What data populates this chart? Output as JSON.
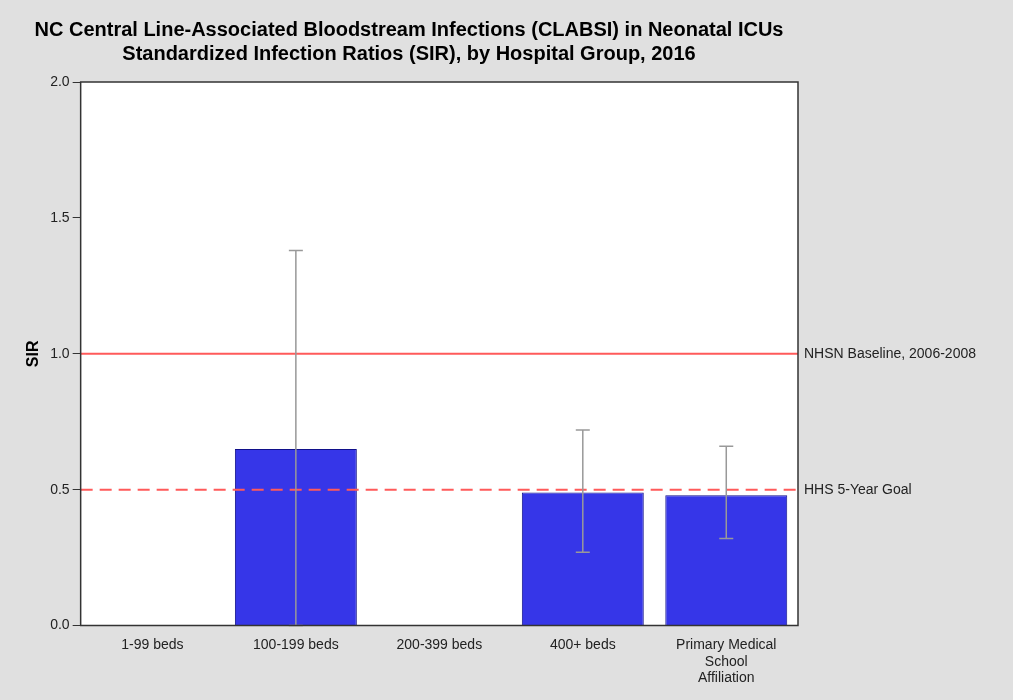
{
  "chart_data": {
    "type": "bar",
    "title": "NC Central Line-Associated Bloodstream Infections (CLABSI) in Neonatal ICUs\nStandardized Infection Ratios (SIR), by Hospital Group, 2016",
    "ylabel": "SIR",
    "categories": [
      "1-99 beds",
      "100-199 beds",
      "200-399 beds",
      "400+ beds",
      "Primary Medical School Affiliation"
    ],
    "values": [
      0,
      0.65,
      0,
      0.49,
      0.48
    ],
    "errors": [
      null,
      [
        0,
        1.38
      ],
      null,
      [
        0.27,
        0.72
      ],
      [
        0.32,
        0.66
      ]
    ],
    "color": "#3636e8",
    "ylim": [
      0,
      2
    ],
    "yticks": [
      {
        "value": 0,
        "label": "0.0"
      },
      0.5,
      {
        "value": 1,
        "label": "1.0"
      },
      1.5,
      {
        "value": 2,
        "label": "2.0"
      }
    ],
    "ref_lines": [
      {
        "axis": "y",
        "value": 1,
        "label": "NHSN Baseline, 2006-2008",
        "color": "#ff5a5a",
        "line_style": "solid"
      },
      {
        "axis": "y",
        "value": 0.5,
        "label": "HHS 5-Year Goal",
        "color": "#ff5a5a",
        "line_style": "dashed"
      }
    ],
    "grid": false,
    "legend": false
  }
}
